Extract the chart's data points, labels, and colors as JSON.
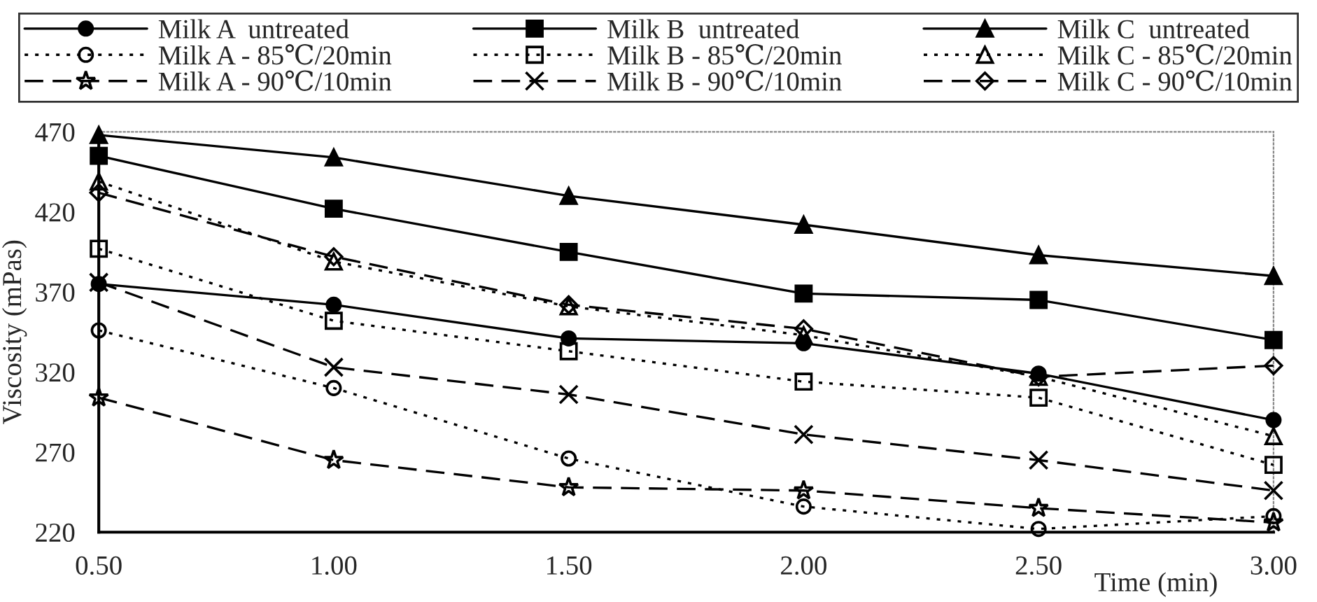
{
  "chart_data": {
    "type": "line",
    "xlabel": "Time (min)",
    "ylabel": "Viscosity (mPas)",
    "x": [
      0.5,
      1.0,
      1.5,
      2.0,
      2.5,
      3.0
    ],
    "xlim": [
      0.5,
      3.0
    ],
    "ylim": [
      220,
      470
    ],
    "xticks": [
      {
        "value": 0.5,
        "label": "0.50"
      },
      {
        "value": 1.0,
        "label": "1.00"
      },
      {
        "value": 1.5,
        "label": "1.50"
      },
      {
        "value": 2.0,
        "label": "2.00"
      },
      {
        "value": 2.5,
        "label": "2.50"
      },
      {
        "value": 3.0,
        "label": "3.00"
      }
    ],
    "yticks": [
      220,
      270,
      320,
      370,
      420,
      470
    ],
    "grid": false,
    "legend": "top",
    "series": [
      {
        "name": "Milk A  untreated",
        "color": "#000000",
        "marker": "circle",
        "line_style": "solid",
        "values": [
          375,
          362,
          341,
          338,
          319,
          290
        ]
      },
      {
        "name": "Milk B  untreated",
        "color": "#000000",
        "marker": "square",
        "line_style": "solid",
        "values": [
          455,
          422,
          395,
          369,
          365,
          340
        ]
      },
      {
        "name": "Milk C  untreated",
        "color": "#000000",
        "marker": "triangle",
        "line_style": "solid",
        "values": [
          468,
          454,
          430,
          412,
          393,
          380
        ]
      },
      {
        "name": "Milk A - 85℃/20min",
        "color": "#000000",
        "marker": "circle",
        "line_style": "dotted",
        "values": [
          346,
          310,
          266,
          236,
          222,
          230
        ]
      },
      {
        "name": "Milk B - 85℃/20min",
        "color": "#000000",
        "marker": "square",
        "line_style": "dotted",
        "values": [
          397,
          352,
          333,
          314,
          304,
          262
        ]
      },
      {
        "name": "Milk C - 85℃/20min",
        "color": "#000000",
        "marker": "triangle",
        "line_style": "dotted",
        "values": [
          439,
          389,
          361,
          343,
          317,
          280
        ]
      },
      {
        "name": "Milk A - 90℃/10min",
        "color": "#000000",
        "marker": "star",
        "line_style": "dashed",
        "values": [
          304,
          265,
          248,
          246,
          235,
          226
        ]
      },
      {
        "name": "Milk B - 90℃/10min",
        "color": "#000000",
        "marker": "cross",
        "line_style": "dashed",
        "values": [
          376,
          323,
          306,
          281,
          265,
          246
        ]
      },
      {
        "name": "Milk C - 90℃/10min",
        "color": "#000000",
        "marker": "diamond",
        "line_style": "dashed",
        "values": [
          432,
          392,
          362,
          347,
          317,
          324
        ]
      }
    ]
  }
}
